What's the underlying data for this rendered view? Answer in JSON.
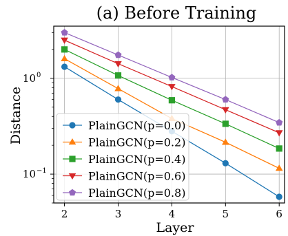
{
  "chart_data": {
    "type": "line",
    "title": "(a) Before Training",
    "xlabel": "Layer",
    "ylabel": "Distance",
    "x": [
      2,
      3,
      4,
      5,
      6
    ],
    "x_ticks": [
      "2",
      "3",
      "4",
      "5",
      "6"
    ],
    "yscale": "log",
    "ylim": [
      0.05,
      3.5
    ],
    "xlim": [
      1.8,
      6.1
    ],
    "y_ticks": [
      {
        "value": 1,
        "base": "10",
        "exp": "0"
      },
      {
        "value": 0.1,
        "base": "10",
        "exp": "−1"
      }
    ],
    "grid": true,
    "legend_position": "lower-left",
    "series": [
      {
        "name": "PlainGCN(p=0.0)",
        "color": "#1f77b4",
        "marker": "circle",
        "values": [
          1.32,
          0.6,
          0.28,
          0.13,
          0.058
        ]
      },
      {
        "name": "PlainGCN(p=0.2)",
        "color": "#ff7f0e",
        "marker": "triangle-up",
        "values": [
          1.6,
          0.78,
          0.38,
          0.215,
          0.115
        ]
      },
      {
        "name": "PlainGCN(p=0.4)",
        "color": "#2ca02c",
        "marker": "square",
        "values": [
          2.0,
          1.07,
          0.59,
          0.335,
          0.185
        ]
      },
      {
        "name": "PlainGCN(p=0.6)",
        "color": "#d62728",
        "marker": "triangle-down",
        "values": [
          2.5,
          1.42,
          0.82,
          0.47,
          0.27
        ]
      },
      {
        "name": "PlainGCN(p=0.8)",
        "color": "#9467bd",
        "marker": "pentagon",
        "values": [
          3.0,
          1.75,
          1.02,
          0.6,
          0.345
        ]
      }
    ]
  }
}
